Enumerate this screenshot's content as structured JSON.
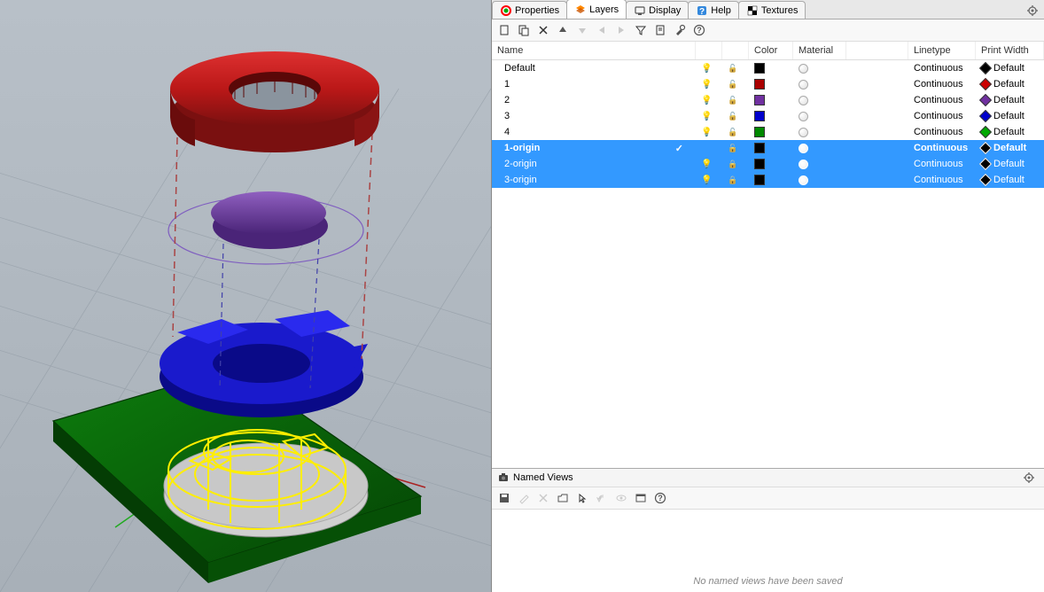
{
  "tabs": [
    {
      "label": "Properties",
      "icon_color": "#ff0000"
    },
    {
      "label": "Layers",
      "icon_color": "#ff6600",
      "active": true
    },
    {
      "label": "Display",
      "icon_color": "#555555"
    },
    {
      "label": "Help",
      "icon_color": "#0066cc"
    },
    {
      "label": "Textures",
      "icon_color": "#000000"
    }
  ],
  "layer_columns": {
    "name": "Name",
    "color": "Color",
    "material": "Material",
    "linetype": "Linetype",
    "printwidth": "Print Width"
  },
  "layers": [
    {
      "name": "Default",
      "visible": true,
      "locked": false,
      "color": "#000000",
      "diamond": "#000000",
      "linetype": "Continuous",
      "printwidth": "Default",
      "selected": false,
      "current": false
    },
    {
      "name": "1",
      "visible": true,
      "locked": false,
      "color": "#aa0000",
      "diamond": "#cc0000",
      "linetype": "Continuous",
      "printwidth": "Default",
      "selected": false,
      "current": false
    },
    {
      "name": "2",
      "visible": true,
      "locked": false,
      "color": "#7030a0",
      "diamond": "#7030a0",
      "linetype": "Continuous",
      "printwidth": "Default",
      "selected": false,
      "current": false
    },
    {
      "name": "3",
      "visible": true,
      "locked": false,
      "color": "#0000cc",
      "diamond": "#0000cc",
      "linetype": "Continuous",
      "printwidth": "Default",
      "selected": false,
      "current": false
    },
    {
      "name": "4",
      "visible": true,
      "locked": false,
      "color": "#008800",
      "diamond": "#00aa00",
      "linetype": "Continuous",
      "printwidth": "Default",
      "selected": false,
      "current": false
    },
    {
      "name": "1-origin",
      "visible": false,
      "locked": false,
      "color": "#000000",
      "diamond": "#000000",
      "linetype": "Continuous",
      "printwidth": "Default",
      "selected": true,
      "current": true,
      "primary": true
    },
    {
      "name": "2-origin",
      "visible": true,
      "locked": true,
      "color": "#000000",
      "diamond": "#000000",
      "linetype": "Continuous",
      "printwidth": "Default",
      "selected": true,
      "current": false
    },
    {
      "name": "3-origin",
      "visible": true,
      "locked": true,
      "color": "#000000",
      "diamond": "#000000",
      "linetype": "Continuous",
      "printwidth": "Default",
      "selected": true,
      "current": false
    }
  ],
  "named_views": {
    "title": "Named Views",
    "empty_text": "No named views have been saved"
  },
  "viewport": {
    "background_top": "#b8c0c8",
    "background_bottom": "#a8b0b8",
    "grid_color": "#8a949e",
    "axis_x_color": "#aa2222",
    "axis_y_color": "#22aa22",
    "object_colors": {
      "red_ring": "#bb1818",
      "red_ring_dark": "#7a1010",
      "purple_disc": "#5a2b8a",
      "purple_disc_light": "#8855bb",
      "blue_ring": "#1a1acc",
      "blue_ring_dark": "#0a0a88",
      "green_base": "#0a6a0a",
      "green_base_dark": "#054505",
      "yellow_wire": "#ffee00",
      "grey_disc": "#c8c8c8",
      "dashed_line": "#aa4444",
      "purple_circle": "#8060c0"
    }
  }
}
